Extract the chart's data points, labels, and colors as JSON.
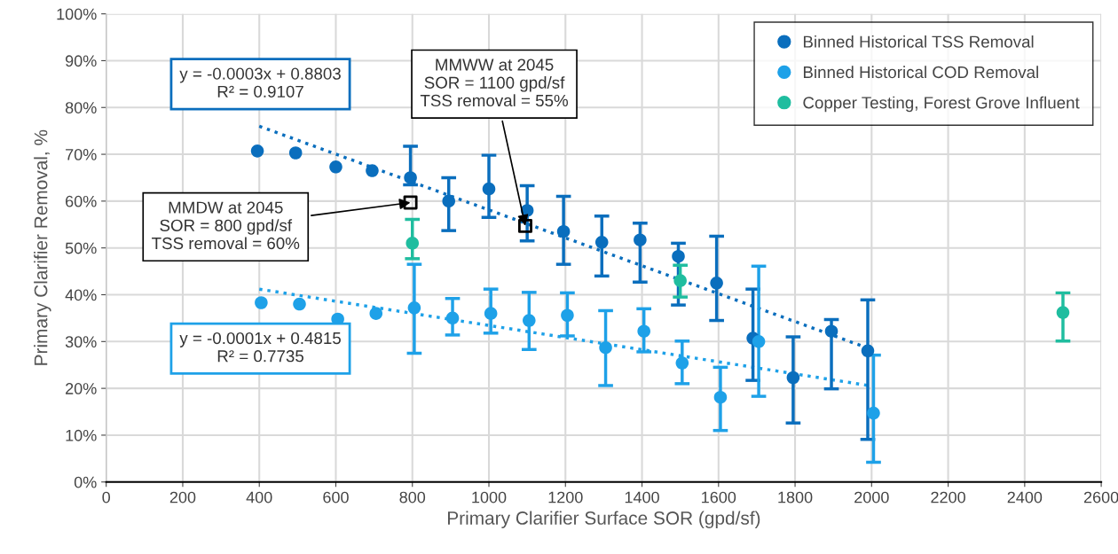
{
  "chart_data": {
    "type": "scatter",
    "xlabel": "Primary Clarifier Surface SOR (gpd/sf)",
    "ylabel": "Primary Clarifier Removal, %",
    "xlim": [
      0,
      2600
    ],
    "xticks": [
      0,
      200,
      400,
      600,
      800,
      1000,
      1200,
      1400,
      1600,
      1800,
      2000,
      2200,
      2400,
      2600
    ],
    "ylim": [
      0,
      100
    ],
    "yticks": [
      {
        "value": 0,
        "label": "0%"
      },
      {
        "value": 10,
        "label": "10%"
      },
      {
        "value": 20,
        "label": "20%"
      },
      {
        "value": 30,
        "label": "30%"
      },
      {
        "value": 40,
        "label": "40%"
      },
      {
        "value": 50,
        "label": "50%"
      },
      {
        "value": 60,
        "label": "60%"
      },
      {
        "value": 70,
        "label": "70%"
      },
      {
        "value": 80,
        "label": "80%"
      },
      {
        "value": 90,
        "label": "90%"
      },
      {
        "value": 100,
        "label": "100%"
      }
    ],
    "grid": true,
    "legend": "top right",
    "marker": "circle",
    "series": [
      {
        "name": "Binned Historical TSS Removal",
        "color": "#0a6ebd",
        "x": [
          395,
          495,
          600,
          695,
          795,
          895,
          1000,
          1100,
          1195,
          1295,
          1395,
          1495,
          1595,
          1690,
          1795,
          1895,
          1990
        ],
        "values": [
          70.7,
          70.3,
          67.3,
          66.5,
          65,
          60,
          62.6,
          58,
          53.5,
          51.2,
          51.7,
          48.2,
          42.5,
          30.7,
          22.3,
          32.2,
          28
        ],
        "errors": [
          null,
          null,
          null,
          null,
          [
            63.5,
            71.7
          ],
          [
            53.7,
            65
          ],
          [
            56.5,
            69.8
          ],
          [
            51.5,
            63.3
          ],
          [
            46.5,
            61
          ],
          [
            44,
            56.8
          ],
          [
            42.7,
            55.3
          ],
          [
            37.8,
            51
          ],
          [
            34.5,
            52.5
          ],
          [
            21.7,
            41.2
          ],
          [
            12.6,
            31
          ],
          [
            19.9,
            34.7
          ],
          [
            9.1,
            38.9
          ]
        ]
      },
      {
        "name": "Binned Historical COD Removal",
        "color": "#1ea1e8",
        "x": [
          405,
          505,
          605,
          705,
          805,
          905,
          1005,
          1105,
          1205,
          1305,
          1405,
          1505,
          1605,
          1705,
          2005
        ],
        "values": [
          38.3,
          38,
          34.8,
          36,
          37.2,
          35,
          36,
          34.5,
          35.6,
          28.7,
          32.2,
          25.4,
          18.1,
          30,
          14.7
        ],
        "errors": [
          null,
          null,
          null,
          null,
          [
            27.5,
            46.5
          ],
          [
            31.4,
            39.2
          ],
          [
            31.8,
            41.2
          ],
          [
            28.3,
            40.5
          ],
          [
            31.2,
            40.4
          ],
          [
            20.6,
            36.6
          ],
          [
            27.8,
            37
          ],
          [
            21,
            30.1
          ],
          [
            11,
            24.5
          ],
          [
            18.3,
            46.1
          ],
          [
            4.2,
            27.1
          ]
        ]
      },
      {
        "name": "Copper Testing, Forest Grove Influent",
        "color": "#1fbd9f",
        "x": [
          800,
          1500,
          2500
        ],
        "values": [
          51,
          43,
          36.2
        ],
        "errors": [
          [
            47.7,
            56.1
          ],
          [
            39.5,
            46.3
          ],
          [
            30.1,
            40.4
          ]
        ]
      },
      {
        "type": "line",
        "color": "#0a6ebd",
        "line_style": "dotted",
        "marker": "none",
        "x": [
          400,
          2000
        ],
        "values": [
          76,
          28.3
        ]
      },
      {
        "type": "line",
        "color": "#1ea1e8",
        "line_style": "dotted",
        "marker": "none",
        "x": [
          400,
          2000
        ],
        "values": [
          41.2,
          20.5
        ]
      },
      {
        "type": "scatter",
        "color": "#000000",
        "marker": "square",
        "x": [
          795,
          1095
        ],
        "values": [
          59.7,
          54.7
        ]
      }
    ],
    "annotations": [
      "y = -0.0003x + 0.8803\nR² = 0.9107",
      "y = -0.0001x + 0.4815\nR² = 0.7735",
      {
        "text": "MMDW at 2045\nSOR = 800 gpd/sf\nTSS removal = 60%",
        "x": 795,
        "y": 59.7
      },
      {
        "text": "MMWW at 2045\nSOR = 1100 gpd/sf\nTSS removal = 55%",
        "x": 1095,
        "y": 54.7
      }
    ]
  }
}
